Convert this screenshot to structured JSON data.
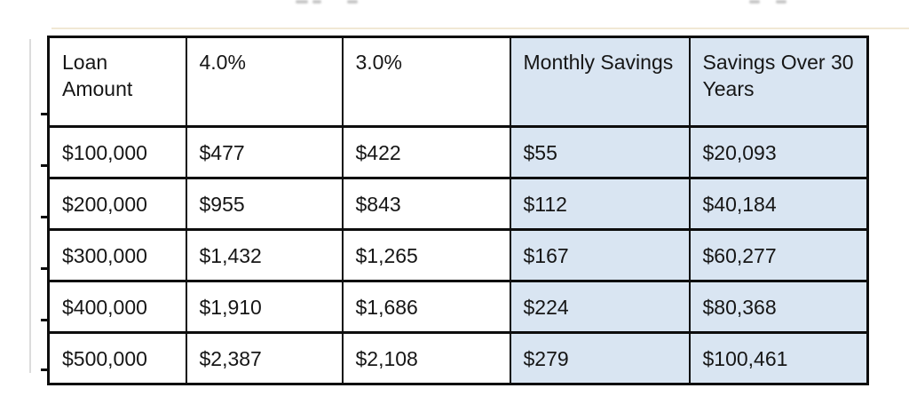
{
  "page": {
    "background_color": "#ffffff"
  },
  "table": {
    "accent_color": "#d9e5f2",
    "border_color": "#0d0d0d",
    "text_color": "#161616",
    "columns": [
      {
        "label": "Loan Amount",
        "highlighted": false
      },
      {
        "label": "4.0%",
        "highlighted": false
      },
      {
        "label": "3.0%",
        "highlighted": false
      },
      {
        "label": "Monthly Savings",
        "highlighted": true
      },
      {
        "label": "Savings Over 30 Years",
        "highlighted": true
      }
    ],
    "rows": [
      [
        "$100,000",
        "$477",
        "$422",
        "$55",
        "$20,093"
      ],
      [
        "$200,000",
        "$955",
        "$843",
        "$112",
        "$40,184"
      ],
      [
        "$300,000",
        "$1,432",
        "$1,265",
        "$167",
        "$60,277"
      ],
      [
        "$400,000",
        "$1,910",
        "$1,686",
        "$224",
        "$80,368"
      ],
      [
        "$500,000",
        "$2,387",
        "$2,108",
        "$279",
        "$100,461"
      ]
    ]
  },
  "chart_data": {
    "type": "table",
    "title": "",
    "columns": [
      "Loan Amount",
      "4.0%",
      "3.0%",
      "Monthly Savings",
      "Savings Over 30 Years"
    ],
    "rows": [
      [
        "$100,000",
        "$477",
        "$422",
        "$55",
        "$20,093"
      ],
      [
        "$200,000",
        "$955",
        "$843",
        "$112",
        "$40,184"
      ],
      [
        "$300,000",
        "$1,432",
        "$1,265",
        "$167",
        "$60,277"
      ],
      [
        "$400,000",
        "$1,910",
        "$1,686",
        "$224",
        "$80,368"
      ],
      [
        "$500,000",
        "$2,387",
        "$2,108",
        "$279",
        "$100,461"
      ]
    ],
    "highlighted_columns": [
      "Monthly Savings",
      "Savings Over 30 Years"
    ],
    "notes": "Monthly payment at 4.0% vs 3.0% interest per loan amount, with monthly savings and savings over 30 years; last two columns shaded light blue"
  }
}
